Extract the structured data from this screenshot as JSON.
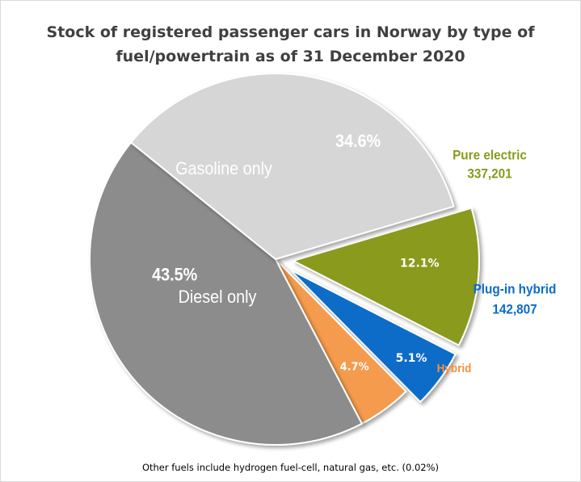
{
  "chart_data": {
    "type": "pie",
    "title_lines": [
      "Stock of registered passenger cars in Norway  by type of",
      "fuel/powertrain as of 31 December 2020"
    ],
    "footnote": "Other fuels include hydrogen fuel-cell, natural gas, etc. (0.02%)",
    "slices": [
      {
        "name": "Pure electric",
        "percent": 12.1,
        "percent_label": "12.1%",
        "value_label": "337,201",
        "color": "#8a9a1c",
        "label_color": "#8a9a1c",
        "exploded": true
      },
      {
        "name": "Plug-in hybrid",
        "percent": 5.1,
        "percent_label": "5.1%",
        "value_label": "142,807",
        "color": "#0a6cc8",
        "label_color": "#0a6cc8",
        "exploded": true
      },
      {
        "name": "Hybrid",
        "percent": 4.7,
        "percent_label": "4.7%",
        "value_label": "",
        "color": "#f59b4e",
        "label_color": "#f5913e",
        "exploded": false
      },
      {
        "name": "Diesel only",
        "percent": 43.5,
        "percent_label": "43.5%",
        "value_label": "",
        "color": "#8c8c8c",
        "label_color": "#ffffff",
        "exploded": false
      },
      {
        "name": "Gasoline only",
        "percent": 34.6,
        "percent_label": "34.6%",
        "value_label": "",
        "color": "#d6d6d6",
        "label_color": "#ffffff",
        "exploded": false
      }
    ]
  }
}
